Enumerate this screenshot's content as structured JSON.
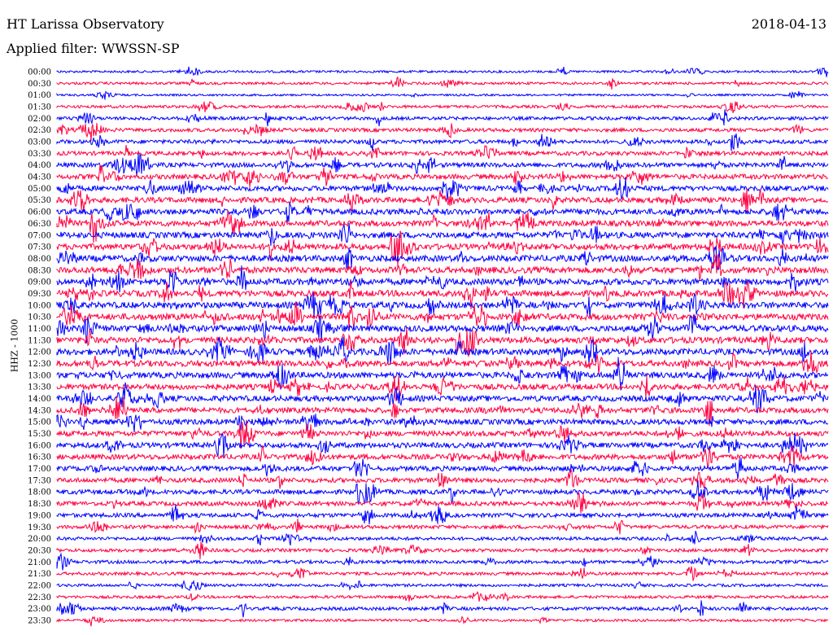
{
  "header": {
    "station": "HT Larissa Observatory",
    "date": "2018-04-13",
    "filter": "Applied filter: WWSSN-SP"
  },
  "chart_data": {
    "type": "line",
    "title": "",
    "ylabel": "HHZ - 1000",
    "xlabel": "",
    "grid": false,
    "colors": [
      "#0000ff",
      "#ff0040"
    ],
    "traces": [
      {
        "label": "00:00",
        "amp": 0.25
      },
      {
        "label": "00:30",
        "amp": 0.3
      },
      {
        "label": "01:00",
        "amp": 0.2
      },
      {
        "label": "01:30",
        "amp": 0.35
      },
      {
        "label": "02:00",
        "amp": 0.45
      },
      {
        "label": "02:30",
        "amp": 0.5
      },
      {
        "label": "03:00",
        "amp": 0.55
      },
      {
        "label": "03:30",
        "amp": 0.6
      },
      {
        "label": "04:00",
        "amp": 0.7
      },
      {
        "label": "04:30",
        "amp": 0.75
      },
      {
        "label": "05:00",
        "amp": 0.8
      },
      {
        "label": "05:30",
        "amp": 0.85
      },
      {
        "label": "06:00",
        "amp": 0.9
      },
      {
        "label": "06:30",
        "amp": 0.9
      },
      {
        "label": "07:00",
        "amp": 0.95
      },
      {
        "label": "07:30",
        "amp": 0.95
      },
      {
        "label": "08:00",
        "amp": 1.0
      },
      {
        "label": "08:30",
        "amp": 1.0
      },
      {
        "label": "09:00",
        "amp": 1.0
      },
      {
        "label": "09:30",
        "amp": 1.0
      },
      {
        "label": "10:00",
        "amp": 1.0
      },
      {
        "label": "10:30",
        "amp": 1.0
      },
      {
        "label": "11:00",
        "amp": 1.0
      },
      {
        "label": "11:30",
        "amp": 1.0
      },
      {
        "label": "12:00",
        "amp": 1.0
      },
      {
        "label": "12:30",
        "amp": 0.95
      },
      {
        "label": "13:00",
        "amp": 0.95
      },
      {
        "label": "13:30",
        "amp": 0.9
      },
      {
        "label": "14:00",
        "amp": 0.9
      },
      {
        "label": "14:30",
        "amp": 0.85
      },
      {
        "label": "15:00",
        "amp": 0.85
      },
      {
        "label": "15:30",
        "amp": 0.8
      },
      {
        "label": "16:00",
        "amp": 0.8
      },
      {
        "label": "16:30",
        "amp": 0.8
      },
      {
        "label": "17:00",
        "amp": 0.75
      },
      {
        "label": "17:30",
        "amp": 0.7
      },
      {
        "label": "18:00",
        "amp": 0.7
      },
      {
        "label": "18:30",
        "amp": 0.65
      },
      {
        "label": "19:00",
        "amp": 0.6
      },
      {
        "label": "19:30",
        "amp": 0.5
      },
      {
        "label": "20:00",
        "amp": 0.45
      },
      {
        "label": "20:30",
        "amp": 0.45
      },
      {
        "label": "21:00",
        "amp": 0.45
      },
      {
        "label": "21:30",
        "amp": 0.4
      },
      {
        "label": "22:00",
        "amp": 0.35
      },
      {
        "label": "22:30",
        "amp": 0.35
      },
      {
        "label": "23:00",
        "amp": 0.45
      },
      {
        "label": "23:30",
        "amp": 0.3
      }
    ]
  }
}
